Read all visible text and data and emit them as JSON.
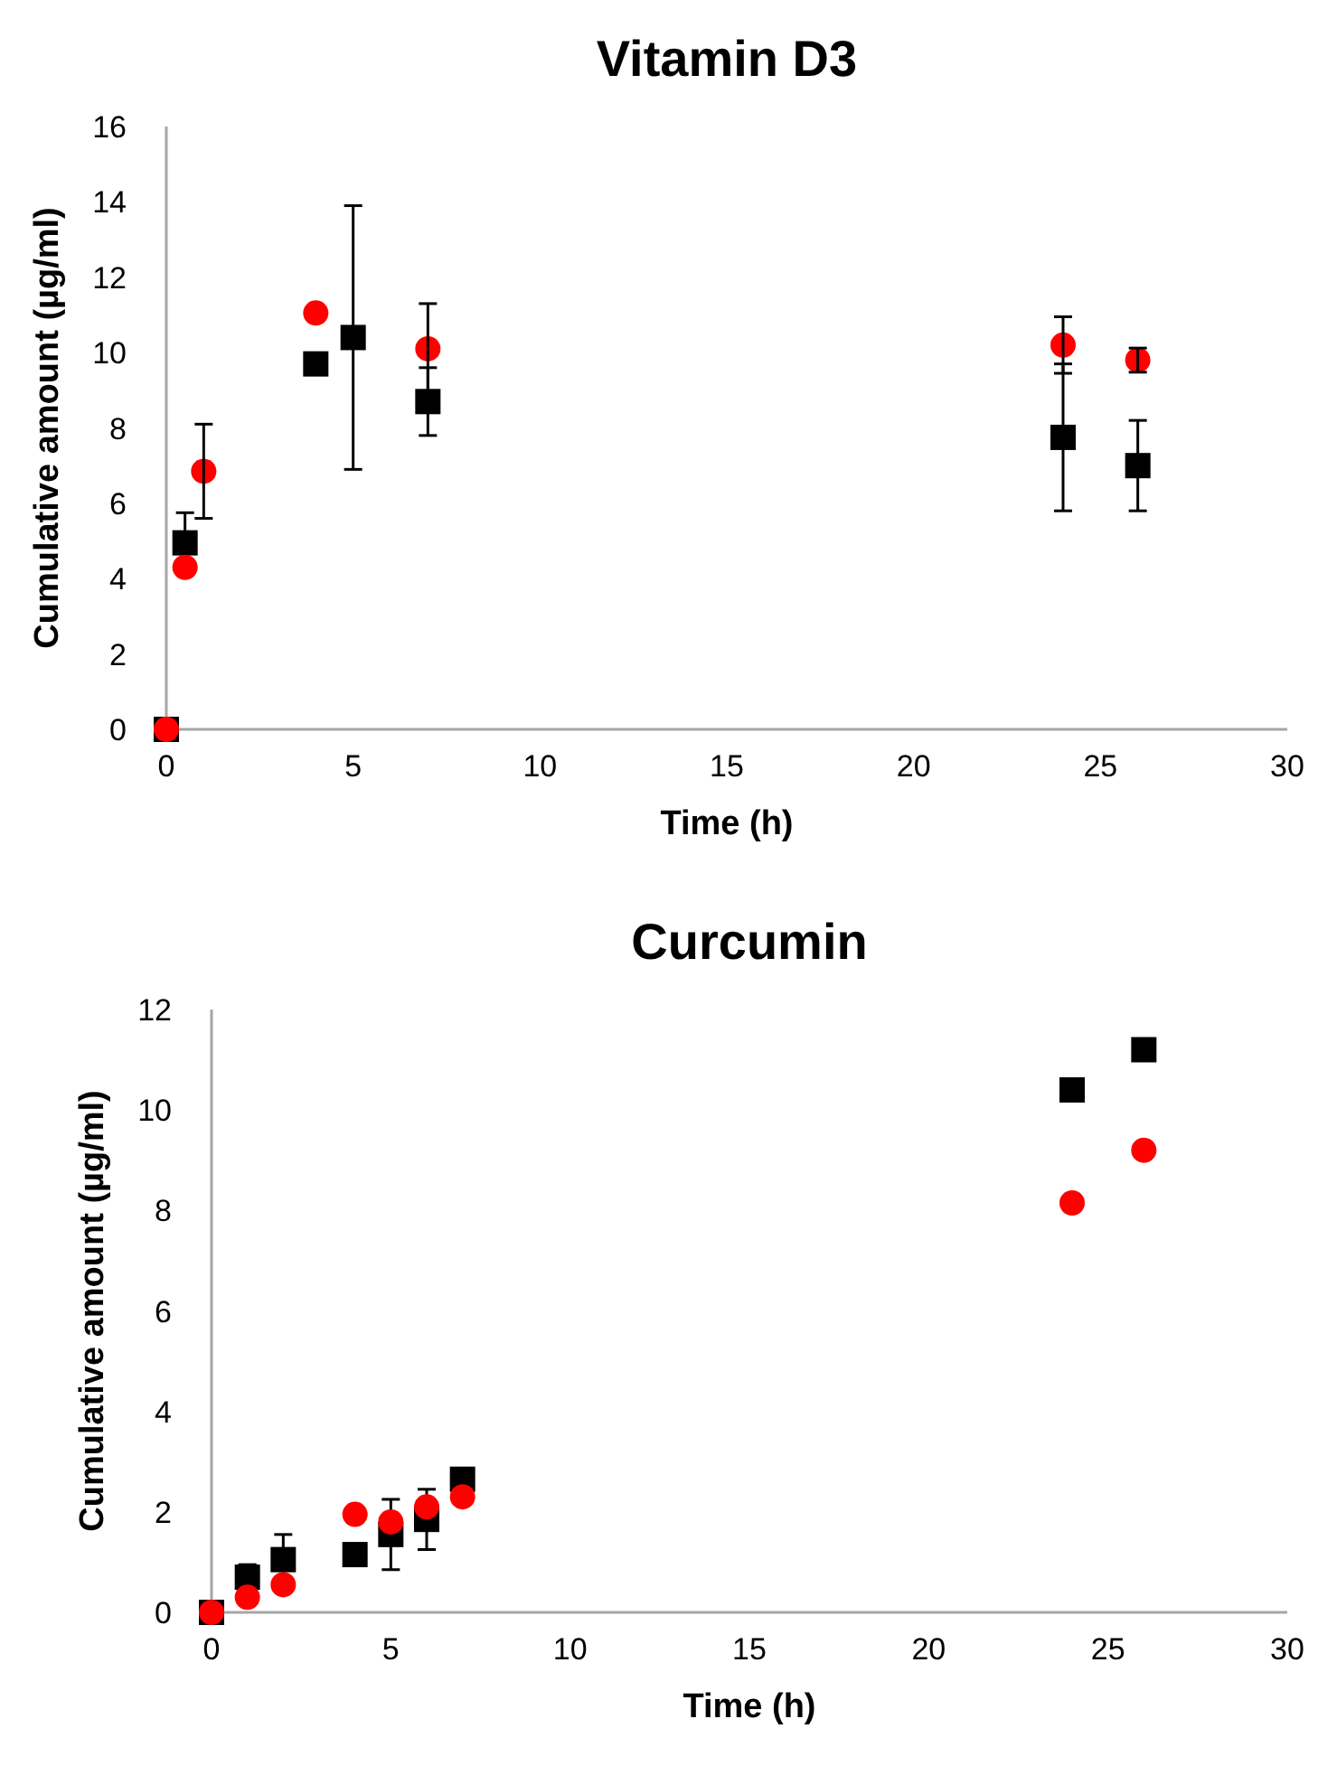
{
  "chart_data": [
    {
      "type": "scatter",
      "title": "Vitamin D3",
      "xlabel": "Time (h)",
      "ylabel": "Cumulative amount (µg/ml)",
      "xlim": [
        0,
        30
      ],
      "xticks": [
        0,
        5,
        10,
        15,
        20,
        25,
        30
      ],
      "ylim": [
        0,
        16
      ],
      "yticks": [
        0,
        2,
        4,
        6,
        8,
        10,
        12,
        14,
        16
      ],
      "grid": false,
      "series": [
        {
          "color": "#000000",
          "marker": "square",
          "x": [
            0,
            0.5,
            4,
            5,
            7,
            24,
            26
          ],
          "values": [
            0,
            4.95,
            9.7,
            10.4,
            8.7,
            7.75,
            7
          ],
          "errors": [
            null,
            0.8,
            null,
            3.5,
            0.9,
            1.95,
            1.2
          ]
        },
        {
          "color": "#ff0000",
          "marker": "circle",
          "x": [
            0,
            0.5,
            1,
            4,
            7,
            24,
            26
          ],
          "values": [
            0,
            4.3,
            6.85,
            11.05,
            10.1,
            10.2,
            9.8
          ],
          "errors": [
            null,
            null,
            1.25,
            null,
            1.2,
            0.75,
            0.32
          ]
        }
      ]
    },
    {
      "type": "scatter",
      "title": "Curcumin",
      "xlabel": "Time (h)",
      "ylabel": "Cumulative amount (µg/ml)",
      "xlim": [
        0,
        30
      ],
      "xticks": [
        0,
        5,
        10,
        15,
        20,
        25,
        30
      ],
      "ylim": [
        0,
        12
      ],
      "yticks": [
        0,
        2,
        4,
        6,
        8,
        10,
        12
      ],
      "grid": false,
      "series": [
        {
          "color": "#000000",
          "marker": "square",
          "x": [
            0,
            1,
            2,
            4,
            5,
            6,
            7,
            24,
            26
          ],
          "values": [
            0,
            0.7,
            1.05,
            1.15,
            1.55,
            1.85,
            2.65,
            10.4,
            11.2
          ],
          "errors": [
            null,
            0.25,
            0.5,
            null,
            0.7,
            0.6,
            0.2,
            null,
            null
          ]
        },
        {
          "color": "#ff0000",
          "marker": "circle",
          "x": [
            0,
            1,
            2,
            4,
            5,
            6,
            7,
            24,
            26
          ],
          "values": [
            0,
            0.3,
            0.55,
            1.95,
            1.8,
            2.1,
            2.3,
            8.15,
            9.2
          ]
        }
      ]
    }
  ]
}
